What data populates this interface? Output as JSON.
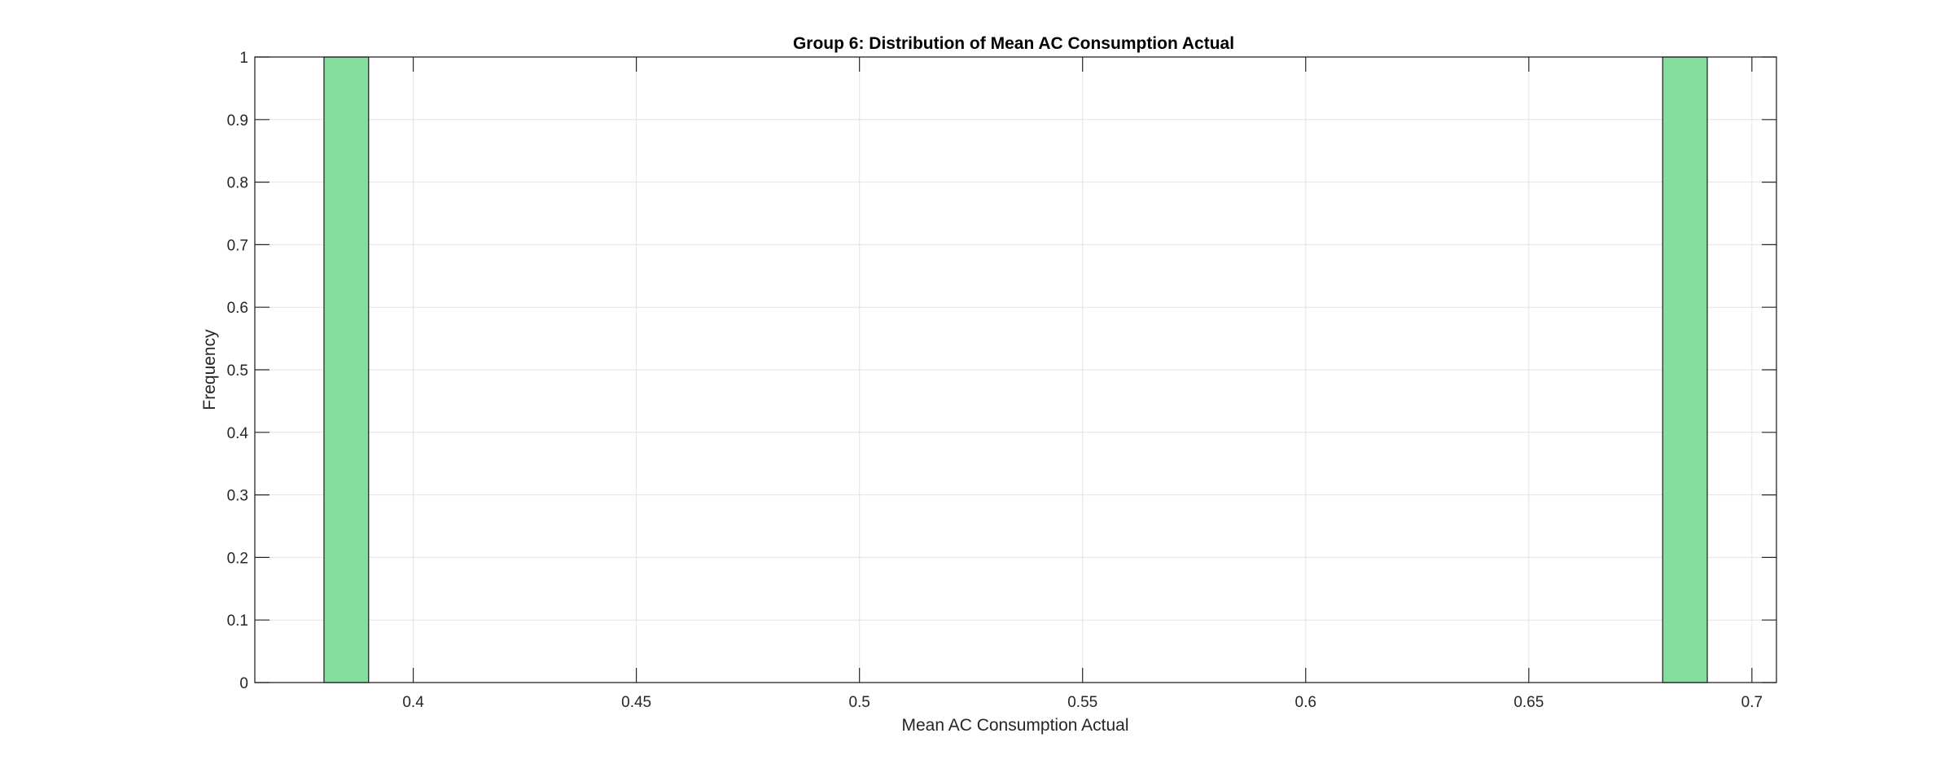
{
  "chart_data": {
    "type": "bar",
    "subtype": "histogram",
    "title": "Group 6: Distribution of Mean AC Consumption Actual",
    "xlabel": "Mean AC Consumption Actual",
    "ylabel": "Frequency",
    "xlim": [
      0.3645,
      0.7055
    ],
    "ylim": [
      0,
      1
    ],
    "xticks": [
      0.4,
      0.45,
      0.5,
      0.55,
      0.6,
      0.65,
      0.7
    ],
    "xtick_labels": [
      "0.4",
      "0.45",
      "0.5",
      "0.55",
      "0.6",
      "0.65",
      "0.7"
    ],
    "yticks": [
      0,
      0.1,
      0.2,
      0.3,
      0.4,
      0.5,
      0.6,
      0.7,
      0.8,
      0.9,
      1
    ],
    "ytick_labels": [
      "0",
      "0.1",
      "0.2",
      "0.3",
      "0.4",
      "0.5",
      "0.6",
      "0.7",
      "0.8",
      "0.9",
      "1"
    ],
    "bins": [
      {
        "x0": 0.38,
        "x1": 0.39,
        "count": 1
      },
      {
        "x0": 0.68,
        "x1": 0.69,
        "count": 1
      }
    ],
    "grid": true,
    "legend": "none",
    "colors": {
      "bar_fill": "#84df9f",
      "bar_edge": "#1a1a1a",
      "grid": "#e3e3e3",
      "axis": "#262626"
    }
  }
}
